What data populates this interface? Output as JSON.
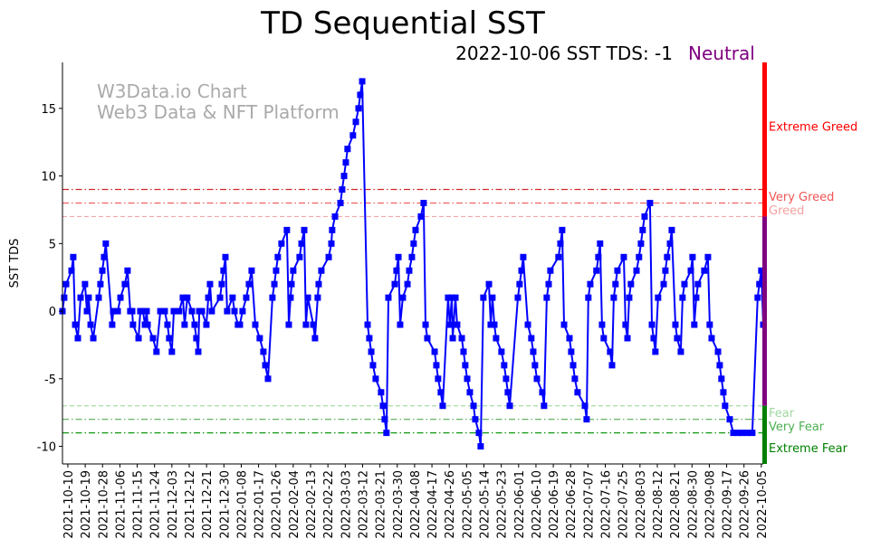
{
  "chart_data": {
    "type": "line",
    "title": "TD Sequential SST",
    "subtitle": "2022-10-06 SST TDS: -1",
    "status": {
      "label": "Neutral",
      "color": "#800080"
    },
    "watermark": [
      "W3Data.io Chart",
      "Web3 Data & NFT Platform"
    ],
    "xlabel": "",
    "ylabel": "SST TDS",
    "x_start_date": "2021-10-10",
    "x_unit": "days since 2021-10-10",
    "xlim": [
      -2.8,
      361
    ],
    "ylim": [
      -11.3,
      18.4
    ],
    "yticks": [
      -10,
      -5,
      0,
      5,
      10,
      15
    ],
    "xticks": [
      {
        "day": 0,
        "label": "2021-10-10"
      },
      {
        "day": 9,
        "label": "2021-10-19"
      },
      {
        "day": 18,
        "label": "2021-10-28"
      },
      {
        "day": 27,
        "label": "2021-11-06"
      },
      {
        "day": 36,
        "label": "2021-11-15"
      },
      {
        "day": 45,
        "label": "2021-11-24"
      },
      {
        "day": 54,
        "label": "2021-12-03"
      },
      {
        "day": 63,
        "label": "2021-12-12"
      },
      {
        "day": 72,
        "label": "2021-12-21"
      },
      {
        "day": 81,
        "label": "2021-12-30"
      },
      {
        "day": 90,
        "label": "2022-01-08"
      },
      {
        "day": 99,
        "label": "2022-01-17"
      },
      {
        "day": 108,
        "label": "2022-01-26"
      },
      {
        "day": 117,
        "label": "2022-02-04"
      },
      {
        "day": 126,
        "label": "2022-02-13"
      },
      {
        "day": 135,
        "label": "2022-02-22"
      },
      {
        "day": 144,
        "label": "2022-03-03"
      },
      {
        "day": 153,
        "label": "2022-03-12"
      },
      {
        "day": 162,
        "label": "2022-03-21"
      },
      {
        "day": 171,
        "label": "2022-03-30"
      },
      {
        "day": 180,
        "label": "2022-04-08"
      },
      {
        "day": 189,
        "label": "2022-04-17"
      },
      {
        "day": 198,
        "label": "2022-04-26"
      },
      {
        "day": 207,
        "label": "2022-05-05"
      },
      {
        "day": 216,
        "label": "2022-05-14"
      },
      {
        "day": 225,
        "label": "2022-05-23"
      },
      {
        "day": 234,
        "label": "2022-06-01"
      },
      {
        "day": 243,
        "label": "2022-06-10"
      },
      {
        "day": 252,
        "label": "2022-06-19"
      },
      {
        "day": 261,
        "label": "2022-06-28"
      },
      {
        "day": 270,
        "label": "2022-07-07"
      },
      {
        "day": 279,
        "label": "2022-07-16"
      },
      {
        "day": 288,
        "label": "2022-07-25"
      },
      {
        "day": 297,
        "label": "2022-08-03"
      },
      {
        "day": 306,
        "label": "2022-08-12"
      },
      {
        "day": 315,
        "label": "2022-08-21"
      },
      {
        "day": 324,
        "label": "2022-08-30"
      },
      {
        "day": 333,
        "label": "2022-09-08"
      },
      {
        "day": 342,
        "label": "2022-09-17"
      },
      {
        "day": 351,
        "label": "2022-09-26"
      },
      {
        "day": 360,
        "label": "2022-10-05"
      }
    ],
    "thresholds": [
      {
        "label": "Extreme Greed",
        "value": 9,
        "line_color": "#d62728",
        "text_color": "#ff0000",
        "style": "dashdot",
        "label_value": 13.7
      },
      {
        "label": "Very Greed",
        "value": 8,
        "line_color": "#f06060",
        "text_color": "#f05555",
        "style": "dashdot",
        "label_value": 8.5
      },
      {
        "label": "Greed",
        "value": 7,
        "line_color": "#f4a8a8",
        "text_color": "#f4a0a0",
        "style": "dashed",
        "label_value": 7.5
      },
      {
        "label": "Fear",
        "value": -7,
        "line_color": "#a8dca8",
        "text_color": "#a0d8a0",
        "style": "dashed",
        "label_value": -7.5
      },
      {
        "label": "Very Fear",
        "value": -8,
        "line_color": "#55aa55",
        "text_color": "#4caf50",
        "style": "dashdot",
        "label_value": -8.5
      },
      {
        "label": "Extreme Fear",
        "value": -9,
        "line_color": "#119911",
        "text_color": "#008000",
        "style": "dashdot",
        "label_value": -10.1
      }
    ],
    "zone_bar": [
      {
        "from": 7,
        "to": 18.4,
        "color": "#ff0000"
      },
      {
        "from": -7,
        "to": 7,
        "color": "#800080"
      },
      {
        "from": -11.3,
        "to": -7,
        "color": "#008000"
      }
    ],
    "series": [
      {
        "name": "SST TDS",
        "color": "#0000ff",
        "points": [
          [
            -2.8,
            0
          ],
          [
            -1.9,
            1
          ],
          [
            -0.9,
            2
          ],
          [
            1.9,
            3
          ],
          [
            2.8,
            4
          ],
          [
            3.8,
            -1
          ],
          [
            5.2,
            -2
          ],
          [
            6.6,
            1
          ],
          [
            8.9,
            2
          ],
          [
            9.9,
            0
          ],
          [
            10.8,
            1
          ],
          [
            11.8,
            -1
          ],
          [
            13.2,
            -2
          ],
          [
            16,
            1
          ],
          [
            16.9,
            2
          ],
          [
            17.9,
            3
          ],
          [
            18.8,
            4
          ],
          [
            19.7,
            5
          ],
          [
            23,
            -1
          ],
          [
            23.5,
            0
          ],
          [
            25.9,
            0
          ],
          [
            27.3,
            1
          ],
          [
            29.6,
            2
          ],
          [
            31,
            3
          ],
          [
            32.4,
            0
          ],
          [
            33.4,
            0
          ],
          [
            33.8,
            -1
          ],
          [
            36.7,
            -2
          ],
          [
            37.6,
            0
          ],
          [
            39,
            0
          ],
          [
            40,
            -1
          ],
          [
            40.9,
            0
          ],
          [
            41.4,
            -1
          ],
          [
            44.2,
            -2
          ],
          [
            46,
            -3
          ],
          [
            48,
            0
          ],
          [
            50.3,
            0
          ],
          [
            51.7,
            -1
          ],
          [
            52.6,
            -2
          ],
          [
            54,
            -3
          ],
          [
            55,
            0
          ],
          [
            57.8,
            0
          ],
          [
            59.7,
            1
          ],
          [
            60.6,
            -1
          ],
          [
            62,
            1
          ],
          [
            64.4,
            0
          ],
          [
            65.8,
            -1
          ],
          [
            66.7,
            -2
          ],
          [
            67.7,
            -3
          ],
          [
            68.2,
            0
          ],
          [
            69.6,
            0
          ],
          [
            71.9,
            -1
          ],
          [
            72.9,
            1
          ],
          [
            73.8,
            2
          ],
          [
            74.7,
            0
          ],
          [
            79,
            1
          ],
          [
            79.9,
            2
          ],
          [
            80.8,
            3
          ],
          [
            81.8,
            4
          ],
          [
            82.7,
            0
          ],
          [
            85.5,
            1
          ],
          [
            86.5,
            0
          ],
          [
            88.3,
            -1
          ],
          [
            89.3,
            -1
          ],
          [
            90.7,
            0
          ],
          [
            92.6,
            1
          ],
          [
            94,
            2
          ],
          [
            95.4,
            3
          ],
          [
            97.3,
            -1
          ],
          [
            99.6,
            -2
          ],
          [
            101.5,
            -3
          ],
          [
            102.5,
            -4
          ],
          [
            103.9,
            -5
          ],
          [
            106.2,
            1
          ],
          [
            107.2,
            2
          ],
          [
            108.1,
            3
          ],
          [
            109,
            4
          ],
          [
            110.9,
            5
          ],
          [
            113.7,
            6
          ],
          [
            114.7,
            -1
          ],
          [
            115.6,
            1
          ],
          [
            116.1,
            2
          ],
          [
            117,
            3
          ],
          [
            120.3,
            4
          ],
          [
            121.3,
            5
          ],
          [
            122.7,
            6
          ],
          [
            123.6,
            -1
          ],
          [
            124.6,
            1
          ],
          [
            127.4,
            -1
          ],
          [
            128.3,
            -2
          ],
          [
            129.7,
            1
          ],
          [
            130.2,
            2
          ],
          [
            131.6,
            3
          ],
          [
            135.4,
            4
          ],
          [
            136.8,
            5
          ],
          [
            137.2,
            6
          ],
          [
            138.7,
            7
          ],
          [
            141.5,
            8
          ],
          [
            142.4,
            9
          ],
          [
            143.4,
            10
          ],
          [
            144.3,
            11
          ],
          [
            145.2,
            12
          ],
          [
            148,
            13
          ],
          [
            149.5,
            14
          ],
          [
            150.9,
            15
          ],
          [
            151.8,
            16
          ],
          [
            152.8,
            17
          ],
          [
            155.6,
            -1
          ],
          [
            156.5,
            -2
          ],
          [
            157.5,
            -3
          ],
          [
            158.4,
            -4
          ],
          [
            159.8,
            -5
          ],
          [
            162.6,
            -6
          ],
          [
            163.6,
            -7
          ],
          [
            164.5,
            -8
          ],
          [
            165.4,
            -9
          ],
          [
            166.4,
            1
          ],
          [
            169.7,
            2
          ],
          [
            170.6,
            3
          ],
          [
            171.6,
            4
          ],
          [
            172.5,
            -1
          ],
          [
            173.9,
            1
          ],
          [
            176.3,
            2
          ],
          [
            177.2,
            3
          ],
          [
            178.6,
            4
          ],
          [
            179.5,
            5
          ],
          [
            180.5,
            6
          ],
          [
            183.3,
            7
          ],
          [
            184.7,
            8
          ],
          [
            185.7,
            -1
          ],
          [
            186.6,
            -2
          ],
          [
            190.4,
            -3
          ],
          [
            191.3,
            -4
          ],
          [
            192.2,
            -5
          ],
          [
            193.6,
            -6
          ],
          [
            194.6,
            -7
          ],
          [
            197.4,
            1
          ],
          [
            198.3,
            -1
          ],
          [
            199.3,
            1
          ],
          [
            199.8,
            -2
          ],
          [
            201.2,
            1
          ],
          [
            202.1,
            -1
          ],
          [
            204.5,
            -2
          ],
          [
            205.4,
            -3
          ],
          [
            206.3,
            -4
          ],
          [
            207.3,
            -5
          ],
          [
            208.7,
            -6
          ],
          [
            210.6,
            -7
          ],
          [
            211.5,
            -8
          ],
          [
            213.4,
            -9
          ],
          [
            214.3,
            -10
          ],
          [
            215.7,
            1
          ],
          [
            218.6,
            2
          ],
          [
            219.5,
            -1
          ],
          [
            220.4,
            1
          ],
          [
            221.4,
            -1
          ],
          [
            222.3,
            -2
          ],
          [
            225.1,
            -3
          ],
          [
            226.5,
            -4
          ],
          [
            227.5,
            -5
          ],
          [
            228.4,
            -6
          ],
          [
            229.4,
            -7
          ],
          [
            233.6,
            1
          ],
          [
            234.5,
            2
          ],
          [
            235.5,
            3
          ],
          [
            236.4,
            4
          ],
          [
            238.8,
            -1
          ],
          [
            240.6,
            -2
          ],
          [
            241.6,
            -3
          ],
          [
            242.5,
            -4
          ],
          [
            243.5,
            -5
          ],
          [
            246.3,
            -6
          ],
          [
            247.2,
            -7
          ],
          [
            248.6,
            1
          ],
          [
            249.6,
            2
          ],
          [
            250.5,
            3
          ],
          [
            254.7,
            4
          ],
          [
            255.7,
            5
          ],
          [
            256.6,
            6
          ],
          [
            257.6,
            -1
          ],
          [
            260.4,
            -2
          ],
          [
            261.3,
            -3
          ],
          [
            262.3,
            -4
          ],
          [
            263.2,
            -5
          ],
          [
            264.6,
            -6
          ],
          [
            268.4,
            -7
          ],
          [
            269.3,
            -8
          ],
          [
            270.2,
            1
          ],
          [
            271.2,
            2
          ],
          [
            274.4,
            3
          ],
          [
            275.4,
            4
          ],
          [
            276.3,
            5
          ],
          [
            277.3,
            -1
          ],
          [
            278.2,
            -2
          ],
          [
            281.5,
            -3
          ],
          [
            282.5,
            -4
          ],
          [
            283.4,
            1
          ],
          [
            284.3,
            2
          ],
          [
            285.3,
            3
          ],
          [
            288.6,
            4
          ],
          [
            289.5,
            -1
          ],
          [
            290.5,
            -2
          ],
          [
            291.4,
            1
          ],
          [
            292.3,
            2
          ],
          [
            295.2,
            3
          ],
          [
            296.5,
            4
          ],
          [
            297.5,
            5
          ],
          [
            298.4,
            6
          ],
          [
            299.4,
            7
          ],
          [
            302.2,
            8
          ],
          [
            303.2,
            -1
          ],
          [
            304.1,
            -2
          ],
          [
            305,
            -3
          ],
          [
            306.4,
            1
          ],
          [
            309.3,
            2
          ],
          [
            310.2,
            3
          ],
          [
            311.1,
            4
          ],
          [
            312.6,
            5
          ],
          [
            313.5,
            6
          ],
          [
            315.4,
            -1
          ],
          [
            316.3,
            -2
          ],
          [
            318.2,
            -3
          ],
          [
            319.1,
            1
          ],
          [
            320.1,
            2
          ],
          [
            323.4,
            3
          ],
          [
            324.3,
            4
          ],
          [
            325.2,
            -1
          ],
          [
            326.2,
            1
          ],
          [
            327.1,
            2
          ],
          [
            330.4,
            3
          ],
          [
            332.3,
            4
          ],
          [
            333.2,
            -1
          ],
          [
            334.2,
            -2
          ],
          [
            337.5,
            -3
          ],
          [
            338.4,
            -4
          ],
          [
            339.3,
            -5
          ],
          [
            340.3,
            -6
          ],
          [
            341.2,
            -7
          ],
          [
            343.6,
            -8
          ],
          [
            345.5,
            -9
          ],
          [
            347.8,
            -9
          ],
          [
            350,
            -9
          ],
          [
            352.5,
            -9
          ],
          [
            355.3,
            -9
          ],
          [
            358.1,
            1
          ],
          [
            359,
            2
          ],
          [
            360,
            3
          ],
          [
            361,
            -1
          ]
        ]
      }
    ]
  }
}
